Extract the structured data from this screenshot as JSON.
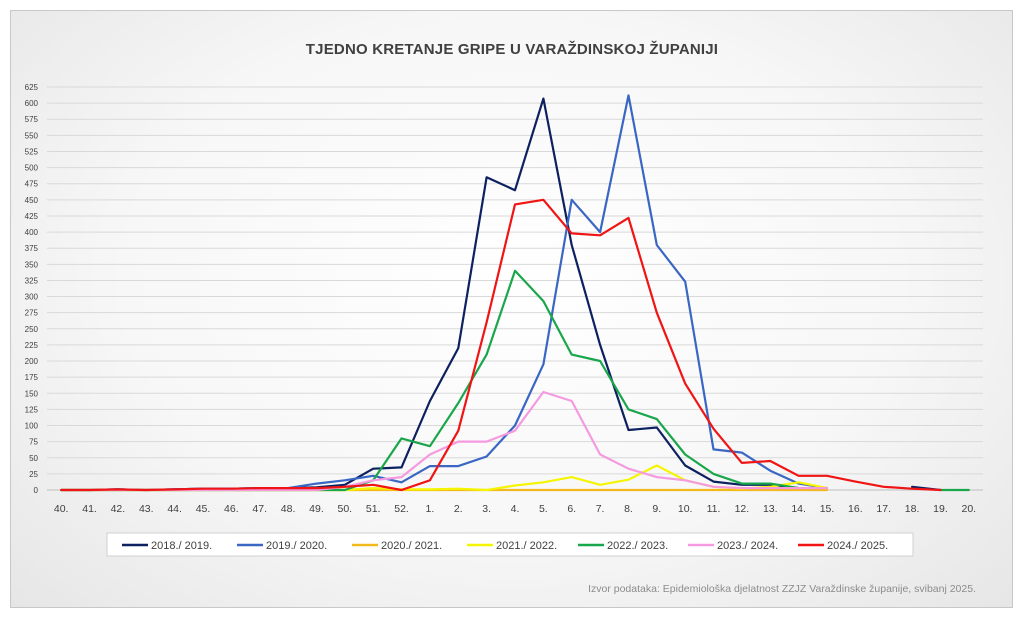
{
  "chart_data": {
    "type": "line",
    "title": "TJEDNO KRETANJE GRIPE U VARAŽDINSKOJ ŽUPANIJI",
    "source_note": "Izvor podataka: Epidemiološka djelatnost ZZJZ Varaždinske županije, svibanj 2025.",
    "ylim": [
      0,
      625
    ],
    "ytick_step": 25,
    "grid": true,
    "legend_position": "bottom",
    "categories": [
      "40.",
      "41.",
      "42.",
      "43.",
      "44.",
      "45.",
      "46.",
      "47.",
      "48.",
      "49.",
      "50.",
      "51.",
      "52.",
      "1.",
      "2.",
      "3.",
      "4.",
      "5.",
      "6.",
      "7.",
      "8.",
      "9.",
      "10.",
      "11.",
      "12.",
      "13.",
      "14.",
      "15.",
      "16.",
      "17.",
      "18.",
      "19.",
      "20."
    ],
    "series": [
      {
        "name": "2018./ 2019.",
        "color": "#0d2161",
        "values": [
          0,
          0,
          1,
          0,
          1,
          2,
          2,
          3,
          3,
          4,
          8,
          33,
          35,
          138,
          220,
          485,
          465,
          607,
          380,
          225,
          93,
          97,
          38,
          13,
          8,
          8,
          3,
          3,
          null,
          null,
          5,
          0,
          null
        ]
      },
      {
        "name": "2019./ 2020.",
        "color": "#3a66c4",
        "values": [
          0,
          0,
          1,
          0,
          1,
          2,
          2,
          3,
          3,
          10,
          15,
          22,
          12,
          37,
          37,
          52,
          100,
          195,
          450,
          400,
          612,
          380,
          323,
          63,
          58,
          30,
          10,
          3,
          null,
          null,
          null,
          null,
          null
        ]
      },
      {
        "name": "2020./ 2021.",
        "color": "#f2b91c",
        "values": [
          0,
          0,
          0,
          0,
          0,
          0,
          0,
          0,
          0,
          0,
          0,
          0,
          0,
          0,
          0,
          0,
          0,
          0,
          0,
          0,
          0,
          0,
          0,
          0,
          0,
          0,
          0,
          0,
          null,
          null,
          null,
          null,
          null
        ]
      },
      {
        "name": "2021./ 2022.",
        "color": "#f5f500",
        "values": [
          0,
          0,
          0,
          0,
          0,
          0,
          0,
          0,
          0,
          0,
          0,
          3,
          1,
          1,
          2,
          0,
          7,
          12,
          20,
          8,
          16,
          38,
          15,
          5,
          2,
          5,
          12,
          3,
          null,
          null,
          null,
          null,
          null
        ]
      },
      {
        "name": "2022./ 2023.",
        "color": "#1aa64a",
        "values": [
          0,
          0,
          0,
          0,
          0,
          0,
          0,
          0,
          0,
          0,
          0,
          15,
          80,
          68,
          135,
          210,
          340,
          293,
          210,
          200,
          125,
          110,
          55,
          25,
          10,
          10,
          3,
          null,
          null,
          null,
          null,
          0,
          0
        ]
      },
      {
        "name": "2023./ 2024.",
        "color": "#f59ae0",
        "values": [
          0,
          0,
          0,
          0,
          0,
          0,
          0,
          0,
          0,
          0,
          5,
          15,
          20,
          55,
          75,
          75,
          92,
          152,
          138,
          55,
          33,
          20,
          15,
          5,
          3,
          3,
          3,
          3,
          null,
          null,
          null,
          null,
          null
        ]
      },
      {
        "name": "2024./ 2025.",
        "color": "#f01414",
        "values": [
          0,
          0,
          1,
          0,
          1,
          2,
          2,
          3,
          3,
          3,
          5,
          8,
          0,
          15,
          92,
          260,
          443,
          450,
          398,
          395,
          422,
          275,
          165,
          95,
          42,
          45,
          22,
          22,
          13,
          5,
          2,
          0,
          null
        ]
      }
    ]
  }
}
